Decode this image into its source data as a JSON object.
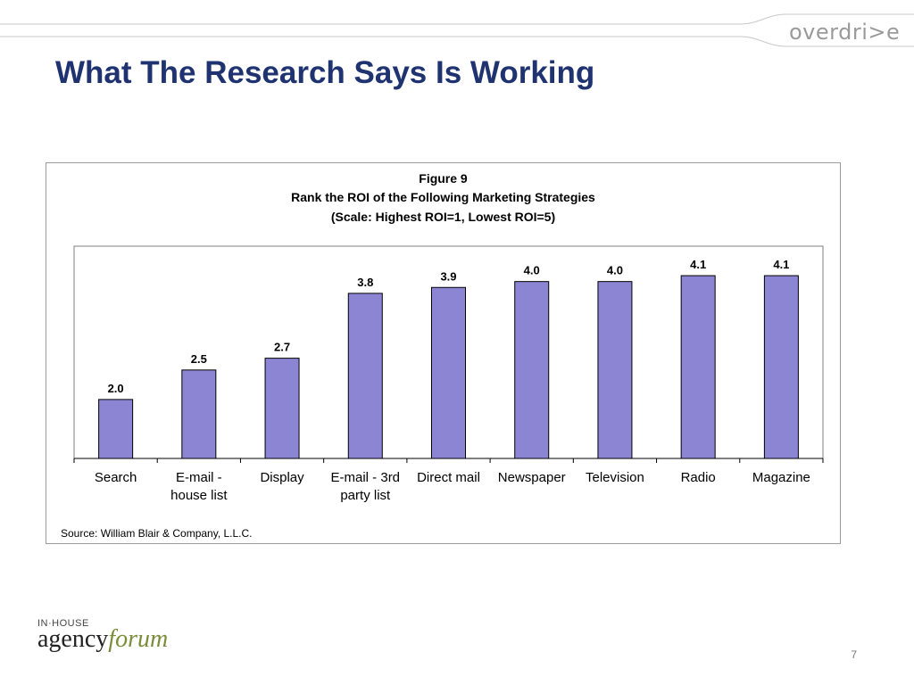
{
  "brand": {
    "logo_text": "overdri>e"
  },
  "slide": {
    "title": "What The Research Says Is Working",
    "page_number": "7"
  },
  "figure": {
    "caption": {
      "line1": "Figure 9",
      "line2": "Rank the ROI of the Following Marketing Strategies",
      "line3": "(Scale: Highest ROI=1, Lowest ROI=5)"
    },
    "source": "Source: William Blair & Company, L.L.C."
  },
  "footer": {
    "logo_small": "IN·HOUSE",
    "logo_word1": "agency",
    "logo_word2": "forum"
  },
  "colors": {
    "bar_fill": "#8c85d4",
    "bar_stroke": "#000000",
    "title": "#1f3370",
    "logo_green": "#7a8c3a"
  },
  "chart_data": {
    "type": "bar",
    "title": "Rank the ROI of the Following Marketing Strategies",
    "subtitle": "(Scale: Highest ROI=1, Lowest ROI=5)",
    "categories": [
      [
        "Search"
      ],
      [
        "E-mail -",
        "house list"
      ],
      [
        "Display"
      ],
      [
        "E-mail - 3rd",
        "party list"
      ],
      [
        "Direct mail"
      ],
      [
        "Newspaper"
      ],
      [
        "Television"
      ],
      [
        "Radio"
      ],
      [
        "Magazine"
      ]
    ],
    "values": [
      2.0,
      2.5,
      2.7,
      3.8,
      3.9,
      4.0,
      4.0,
      4.1,
      4.1
    ],
    "data_labels": [
      "2.0",
      "2.5",
      "2.7",
      "3.8",
      "3.9",
      "4.0",
      "4.0",
      "4.1",
      "4.1"
    ],
    "ylim": [
      1.0,
      4.6
    ],
    "grid": false,
    "legend": "none",
    "xlabel": "",
    "ylabel": ""
  }
}
